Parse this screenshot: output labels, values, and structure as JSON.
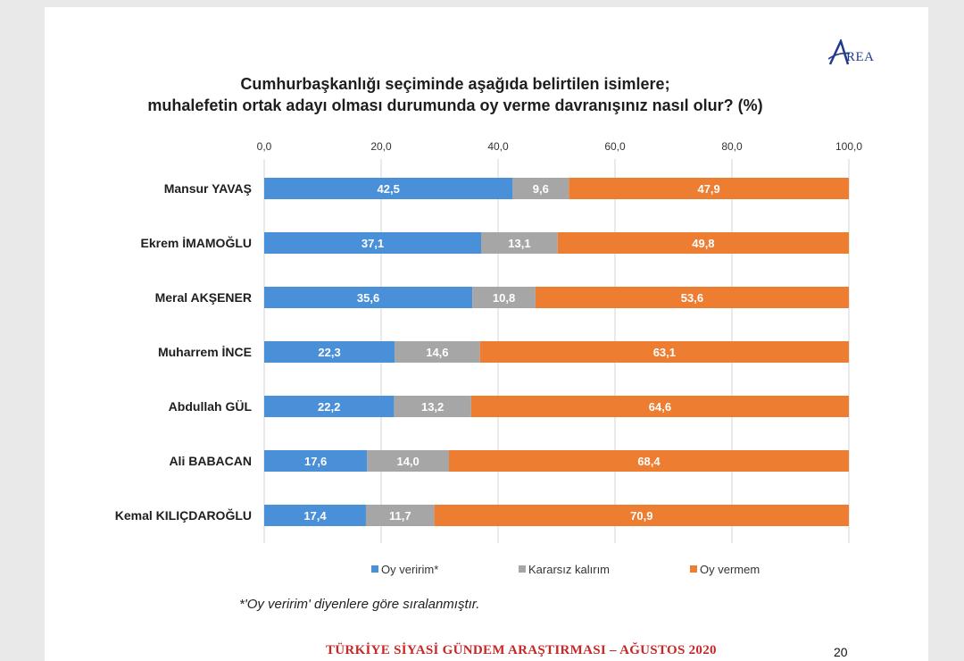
{
  "logo": {
    "text": "REA"
  },
  "title": {
    "line1": "Cumhurbaşkanlığı seçiminde aşağıda belirtilen isimlere;",
    "line2": "muhalefetin ortak adayı olması durumunda oy verme davranışınız nasıl olur? (%)"
  },
  "chart_data": {
    "type": "bar",
    "orientation": "horizontal",
    "stacked": true,
    "x_ticks": [
      "0,0",
      "20,0",
      "40,0",
      "60,0",
      "80,0",
      "100,0"
    ],
    "xlim": [
      0,
      100
    ],
    "grid": true,
    "legend_position": "bottom",
    "categories": [
      "Mansur YAVAŞ",
      "Ekrem İMAMOĞLU",
      "Meral AKŞENER",
      "Muharrem İNCE",
      "Abdullah GÜL",
      "Ali BABACAN",
      "Kemal KILIÇDAROĞLU"
    ],
    "series": [
      {
        "name": "Oy veririm*",
        "color": "#4a90d9",
        "values": [
          42.5,
          37.1,
          35.6,
          22.3,
          22.2,
          17.6,
          17.4
        ],
        "labels": [
          "42,5",
          "37,1",
          "35,6",
          "22,3",
          "22,2",
          "17,6",
          "17,4"
        ]
      },
      {
        "name": "Kararsız kalırım",
        "color": "#a6a6a6",
        "values": [
          9.6,
          13.1,
          10.8,
          14.6,
          13.2,
          14.0,
          11.7
        ],
        "labels": [
          "9,6",
          "13,1",
          "10,8",
          "14,6",
          "13,2",
          "14,0",
          "11,7"
        ]
      },
      {
        "name": "Oy vermem",
        "color": "#ed7d31",
        "values": [
          47.9,
          49.8,
          53.6,
          63.1,
          64.6,
          68.4,
          70.9
        ],
        "labels": [
          "47,9",
          "49,8",
          "53,6",
          "63,1",
          "64,6",
          "68,4",
          "70,9"
        ]
      }
    ]
  },
  "footnote": "*'Oy veririm' diyenlere göre sıralanmıştır.",
  "footer": "TÜRKİYE SİYASİ GÜNDEM ARAŞTIRMASI – AĞUSTOS 2020",
  "page_number": "20"
}
